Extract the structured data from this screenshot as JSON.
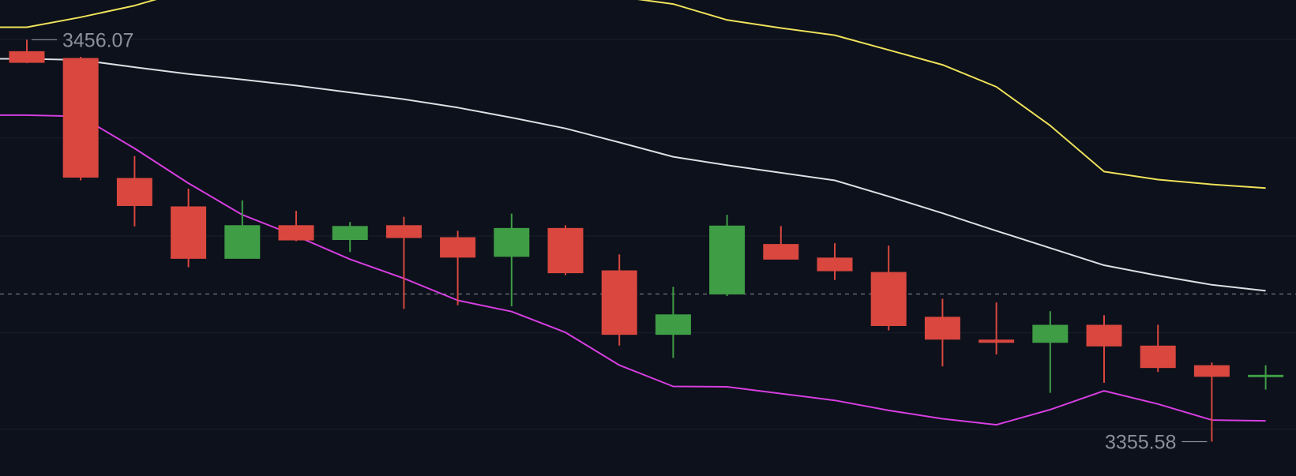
{
  "chart_data": {
    "type": "candlestick",
    "title": "",
    "xlabel": "",
    "ylabel": "",
    "grid": true,
    "ylim": [
      3347,
      3466
    ],
    "colors": {
      "background": "#0c111b",
      "up": "#3f9d45",
      "down": "#d9473f",
      "upper_band": "#efe15a",
      "middle_band": "#dcdfe4",
      "lower_band": "#d63ee0",
      "reference_line": "#7a808a",
      "grid": "#1a212d"
    },
    "annotations": {
      "high_label": "3456.07",
      "low_label": "3355.58"
    },
    "reference_price": 3392.5,
    "candles": [
      {
        "open": 3453.2,
        "high": 3456.07,
        "low": 3450.2,
        "close": 3450.3
      },
      {
        "open": 3451.5,
        "high": 3451.8,
        "low": 3420.9,
        "close": 3421.6
      },
      {
        "open": 3421.5,
        "high": 3427.0,
        "low": 3409.4,
        "close": 3414.5
      },
      {
        "open": 3414.4,
        "high": 3418.8,
        "low": 3399.2,
        "close": 3401.3
      },
      {
        "open": 3401.3,
        "high": 3415.9,
        "low": 3401.3,
        "close": 3409.7
      },
      {
        "open": 3409.7,
        "high": 3413.3,
        "low": 3405.7,
        "close": 3405.9
      },
      {
        "open": 3406.0,
        "high": 3410.5,
        "low": 3403.0,
        "close": 3409.5
      },
      {
        "open": 3409.7,
        "high": 3411.8,
        "low": 3388.8,
        "close": 3406.5
      },
      {
        "open": 3406.7,
        "high": 3408.3,
        "low": 3389.7,
        "close": 3401.6
      },
      {
        "open": 3401.8,
        "high": 3412.6,
        "low": 3389.4,
        "close": 3409.0
      },
      {
        "open": 3409.0,
        "high": 3409.7,
        "low": 3397.2,
        "close": 3397.7
      },
      {
        "open": 3398.4,
        "high": 3402.4,
        "low": 3379.6,
        "close": 3382.3
      },
      {
        "open": 3382.3,
        "high": 3394.3,
        "low": 3376.5,
        "close": 3387.4
      },
      {
        "open": 3392.4,
        "high": 3412.3,
        "low": 3392.0,
        "close": 3409.6
      },
      {
        "open": 3405.0,
        "high": 3409.5,
        "low": 3401.4,
        "close": 3401.1
      },
      {
        "open": 3401.6,
        "high": 3405.2,
        "low": 3396.0,
        "close": 3398.2
      },
      {
        "open": 3398.0,
        "high": 3404.6,
        "low": 3383.4,
        "close": 3384.5
      },
      {
        "open": 3386.8,
        "high": 3391.3,
        "low": 3374.4,
        "close": 3381.1
      },
      {
        "open": 3381.1,
        "high": 3390.4,
        "low": 3377.4,
        "close": 3380.3
      },
      {
        "open": 3380.3,
        "high": 3388.2,
        "low": 3367.8,
        "close": 3384.8
      },
      {
        "open": 3384.8,
        "high": 3387.2,
        "low": 3370.3,
        "close": 3379.4
      },
      {
        "open": 3379.6,
        "high": 3384.8,
        "low": 3373.0,
        "close": 3374.0
      },
      {
        "open": 3374.7,
        "high": 3375.4,
        "low": 3355.58,
        "close": 3371.8
      },
      {
        "open": 3372.3,
        "high": 3374.7,
        "low": 3368.6,
        "close": 3372.3
      }
    ],
    "bands": {
      "upper": [
        3459.2,
        3461.7,
        3464.6,
        3468.5,
        3471.2,
        3471.5,
        3471.2,
        3470.5,
        3469.5,
        3468.5,
        3467.5,
        3466.8,
        3465.0,
        3461.0,
        3459.0,
        3457.2,
        3453.5,
        3449.8,
        3444.3,
        3434.6,
        3423.1,
        3421.1,
        3419.9,
        3419.0
      ],
      "middle": [
        3451.3,
        3451.0,
        3449.2,
        3447.5,
        3446.1,
        3444.6,
        3442.9,
        3441.2,
        3439.1,
        3436.6,
        3433.9,
        3430.4,
        3426.8,
        3424.7,
        3422.8,
        3420.9,
        3416.9,
        3412.7,
        3408.3,
        3404.0,
        3399.7,
        3397.1,
        3394.8,
        3393.3
      ],
      "lower": [
        3437.2,
        3436.9,
        3428.9,
        3420.2,
        3412.3,
        3407.0,
        3401.2,
        3396.4,
        3390.9,
        3388.1,
        3382.9,
        3374.7,
        3369.4,
        3369.3,
        3367.6,
        3365.9,
        3363.4,
        3361.3,
        3359.8,
        3363.6,
        3368.3,
        3365.0,
        3361.0,
        3360.8
      ]
    }
  }
}
